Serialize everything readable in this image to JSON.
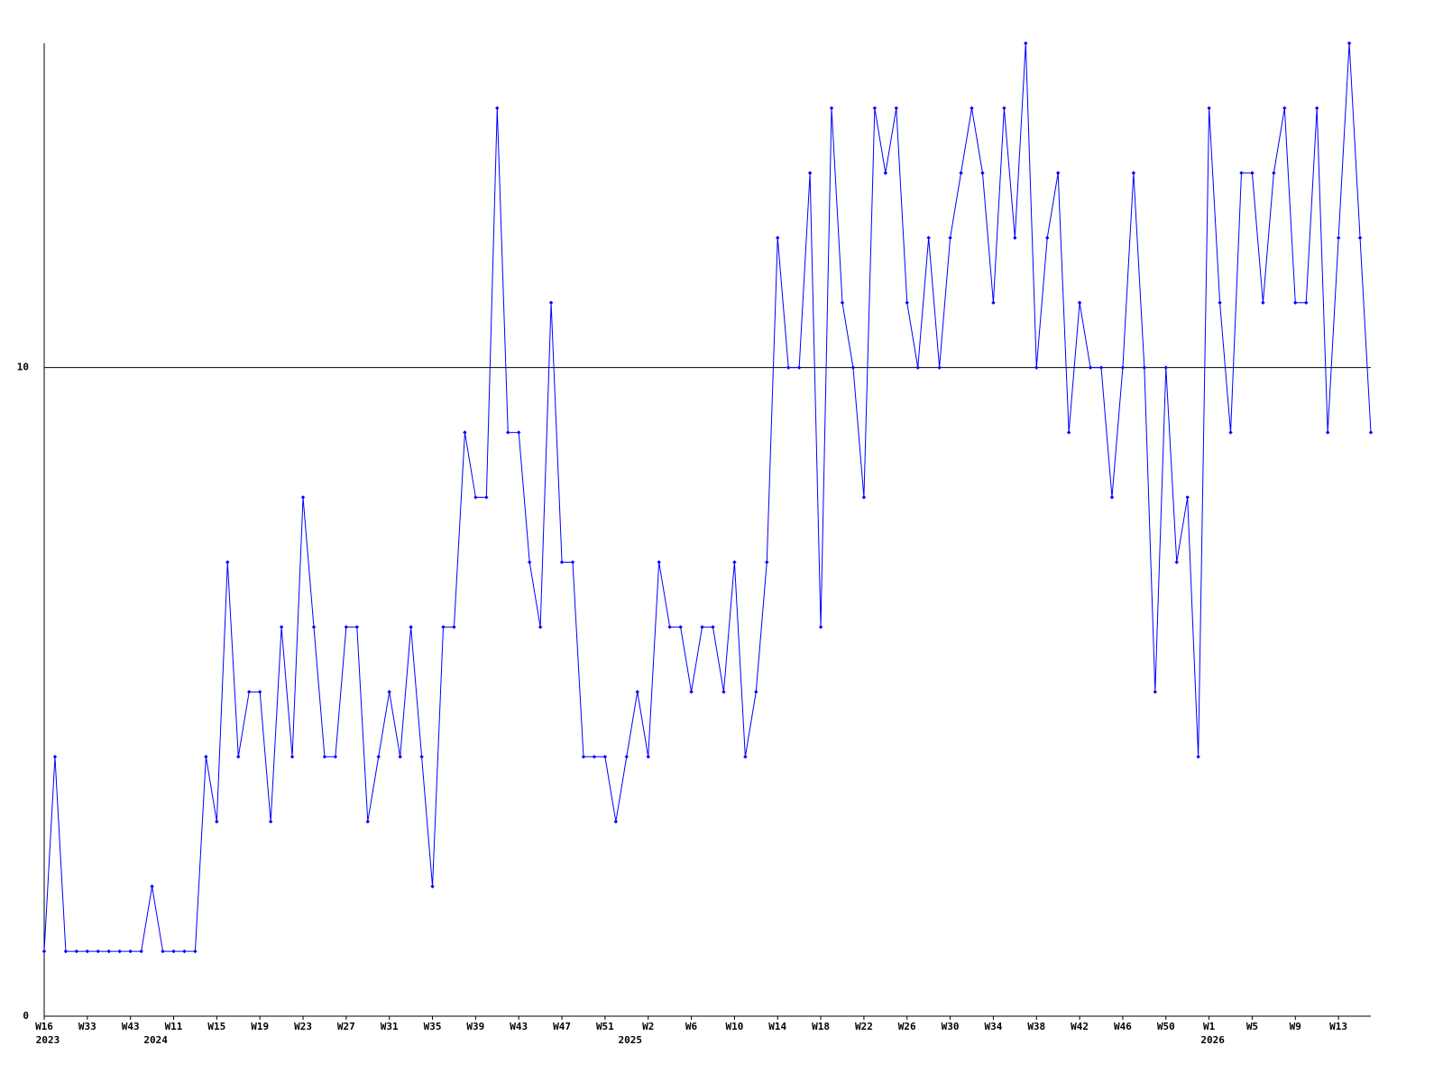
{
  "chart_data": {
    "type": "line",
    "color": "#0000ff",
    "ylim": [
      0,
      15
    ],
    "yticks": [
      0,
      10
    ],
    "grid": true,
    "categories": [
      "W16",
      null,
      null,
      null,
      "W33",
      null,
      null,
      null,
      "W43",
      null,
      null,
      null,
      "W11",
      null,
      null,
      null,
      "W15",
      null,
      null,
      null,
      "W19",
      null,
      null,
      null,
      "W23",
      null,
      null,
      null,
      "W27",
      null,
      null,
      null,
      "W31",
      null,
      null,
      null,
      "W35",
      null,
      null,
      null,
      "W39",
      null,
      null,
      null,
      "W43",
      null,
      null,
      null,
      "W47",
      null,
      null,
      null,
      "W51",
      null,
      null,
      null,
      "W2",
      null,
      null,
      null,
      "W6",
      null,
      null,
      null,
      "W10",
      null,
      null,
      null,
      "W14",
      null,
      null,
      null,
      "W18",
      null,
      null,
      null,
      "W22",
      null,
      null,
      null,
      "W26",
      null,
      null,
      null,
      "W30",
      null,
      null,
      null,
      "W34",
      null,
      null,
      null,
      "W38",
      null,
      null,
      null,
      "W42",
      null,
      null,
      null,
      "W46",
      null,
      null,
      null,
      "W50",
      null,
      null,
      null,
      "W1",
      null,
      null,
      null,
      "W5",
      null,
      null,
      null,
      "W9",
      null,
      null,
      null,
      "W13",
      null,
      null,
      null
    ],
    "year_labels": [
      {
        "index": 0,
        "label": "2023"
      },
      {
        "index": 10,
        "label": "2024"
      },
      {
        "index": 54,
        "label": "2025"
      },
      {
        "index": 108,
        "label": "2026"
      }
    ],
    "values": [
      1,
      4,
      1,
      1,
      1,
      1,
      1,
      1,
      1,
      1,
      2,
      1,
      1,
      1,
      1,
      4,
      3,
      7,
      4,
      5,
      5,
      3,
      6,
      4,
      8,
      6,
      4,
      4,
      6,
      6,
      3,
      4,
      5,
      4,
      6,
      4,
      2,
      6,
      6,
      9,
      8,
      8,
      14,
      9,
      9,
      7,
      6,
      11,
      7,
      7,
      4,
      4,
      4,
      3,
      4,
      5,
      4,
      7,
      6,
      6,
      5,
      6,
      6,
      5,
      7,
      4,
      5,
      7,
      12,
      10,
      10,
      13,
      6,
      14,
      11,
      10,
      8,
      14,
      13,
      14,
      11,
      10,
      12,
      10,
      12,
      13,
      14,
      13,
      11,
      14,
      12,
      15,
      10,
      12,
      13,
      9,
      11,
      10,
      10,
      8,
      10,
      13,
      10,
      5,
      10,
      7,
      8,
      4,
      14,
      11,
      9,
      13,
      13,
      11,
      13,
      14,
      11,
      11,
      14,
      9,
      12,
      15,
      12,
      9
    ]
  }
}
